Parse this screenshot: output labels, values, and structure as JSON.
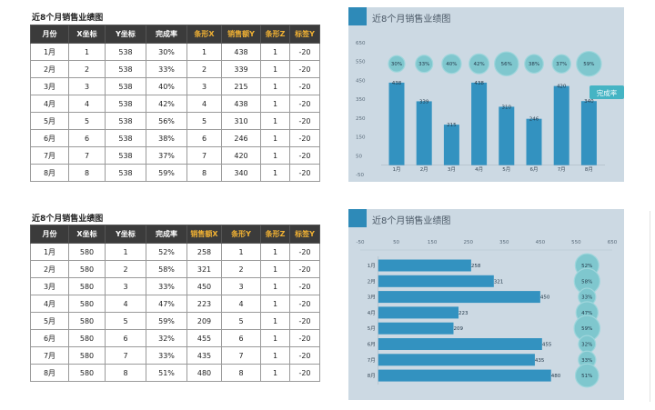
{
  "table1": {
    "title": "近8个月销售业绩图",
    "headers": [
      "月份",
      "X坐标",
      "Y坐标",
      "完成率",
      "条形X",
      "销售额Y",
      "条形Z",
      "标签Y"
    ],
    "highlight": [
      false,
      false,
      false,
      false,
      true,
      true,
      true,
      true
    ],
    "rows": [
      [
        "1月",
        "1",
        "538",
        "30%",
        "1",
        "438",
        "1",
        "-20"
      ],
      [
        "2月",
        "2",
        "538",
        "33%",
        "2",
        "339",
        "1",
        "-20"
      ],
      [
        "3月",
        "3",
        "538",
        "40%",
        "3",
        "215",
        "1",
        "-20"
      ],
      [
        "4月",
        "4",
        "538",
        "42%",
        "4",
        "438",
        "1",
        "-20"
      ],
      [
        "5月",
        "5",
        "538",
        "56%",
        "5",
        "310",
        "1",
        "-20"
      ],
      [
        "6月",
        "6",
        "538",
        "38%",
        "6",
        "246",
        "1",
        "-20"
      ],
      [
        "7月",
        "7",
        "538",
        "37%",
        "7",
        "420",
        "1",
        "-20"
      ],
      [
        "8月",
        "8",
        "538",
        "59%",
        "8",
        "340",
        "1",
        "-20"
      ]
    ]
  },
  "table2": {
    "title": "近8个月销售业绩图",
    "headers": [
      "月份",
      "X坐标",
      "Y坐标",
      "完成率",
      "销售额X",
      "条形Y",
      "条形Z",
      "标签Y"
    ],
    "highlight": [
      false,
      false,
      false,
      false,
      true,
      true,
      true,
      true
    ],
    "rows": [
      [
        "1月",
        "580",
        "1",
        "52%",
        "258",
        "1",
        "1",
        "-20"
      ],
      [
        "2月",
        "580",
        "2",
        "58%",
        "321",
        "2",
        "1",
        "-20"
      ],
      [
        "3月",
        "580",
        "3",
        "33%",
        "450",
        "3",
        "1",
        "-20"
      ],
      [
        "4月",
        "580",
        "4",
        "47%",
        "223",
        "4",
        "1",
        "-20"
      ],
      [
        "5月",
        "580",
        "5",
        "59%",
        "209",
        "5",
        "1",
        "-20"
      ],
      [
        "6月",
        "580",
        "6",
        "32%",
        "455",
        "6",
        "1",
        "-20"
      ],
      [
        "7月",
        "580",
        "7",
        "33%",
        "435",
        "7",
        "1",
        "-20"
      ],
      [
        "8月",
        "580",
        "8",
        "51%",
        "480",
        "8",
        "1",
        "-20"
      ]
    ]
  },
  "colors": {
    "panel_bg": "#ccd9e3",
    "accent": "#2e8ab8",
    "bar": "#3392c0",
    "bubble": "#7fc7ce",
    "header_bg": "#3b3b3b",
    "header_highlight": "#f2b233",
    "callout": "#45b4c4"
  },
  "chart_data": [
    {
      "type": "bar",
      "orientation": "vertical",
      "title": "近8个月销售业绩图",
      "categories": [
        "1月",
        "2月",
        "3月",
        "4月",
        "5月",
        "6月",
        "7月",
        "8月"
      ],
      "values": [
        438,
        339,
        215,
        438,
        310,
        246,
        420,
        340
      ],
      "value_labels": [
        "438",
        "339",
        "215",
        "438",
        "310",
        "246",
        "420",
        "340"
      ],
      "completion_rates": [
        "30%",
        "33%",
        "40%",
        "42%",
        "56%",
        "38%",
        "37%",
        "59%"
      ],
      "yticks": [
        "650",
        "550",
        "450",
        "350",
        "250",
        "150",
        "50",
        "-50"
      ],
      "ylim": [
        -50,
        650
      ],
      "bubble_y": 538,
      "callout": "完成率",
      "grid": false
    },
    {
      "type": "bar",
      "orientation": "horizontal",
      "title": "近8个月销售业绩图",
      "categories": [
        "1月",
        "2月",
        "3月",
        "4月",
        "5月",
        "6月",
        "7月",
        "8月"
      ],
      "values": [
        258,
        321,
        450,
        223,
        209,
        455,
        435,
        480
      ],
      "value_labels": [
        "258",
        "321",
        "450",
        "223",
        "209",
        "455",
        "435",
        "480"
      ],
      "completion_rates": [
        "52%",
        "58%",
        "33%",
        "47%",
        "59%",
        "32%",
        "33%",
        "51%"
      ],
      "xticks": [
        "-50",
        "50",
        "150",
        "250",
        "350",
        "450",
        "550",
        "650"
      ],
      "xlim": [
        -50,
        650
      ],
      "bubble_x": 580,
      "grid": false
    }
  ]
}
